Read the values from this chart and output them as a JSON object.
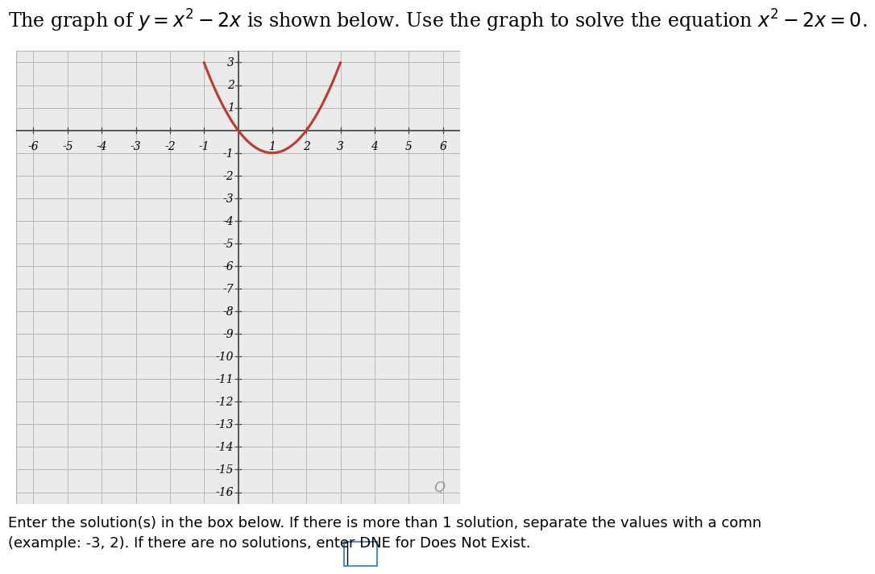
{
  "title_part1": "The graph of ",
  "title_math1": "y = x² − 2x",
  "title_part2": " is shown below. Use the graph to solve the equation ",
  "title_math2": "x² − 2x = 0",
  "title_part3": ".",
  "bottom_line1": "Enter the solution(s) in the box below. If there is more than 1 solution, separate the values with a comn",
  "bottom_line2": "(example: -3, 2). If there are no solutions, enter DNE for Does Not Exist.",
  "xlim": [
    -6.5,
    6.5
  ],
  "ylim": [
    -16.5,
    3.5
  ],
  "xticks": [
    -6,
    -5,
    -4,
    -3,
    -2,
    -1,
    1,
    2,
    3,
    4,
    5,
    6
  ],
  "yticks": [
    -16,
    -15,
    -14,
    -13,
    -12,
    -11,
    -10,
    -9,
    -8,
    -7,
    -6,
    -5,
    -4,
    -3,
    -2,
    -1,
    1,
    2,
    3
  ],
  "curve_color": "#c0392b",
  "curve_xmin": -1.0,
  "curve_xmax": 3.0,
  "background_color": "#ebebeb",
  "grid_color": "#b0b0b0",
  "axis_color": "#444444",
  "tick_label_fontsize": 10,
  "title_fontsize": 17
}
